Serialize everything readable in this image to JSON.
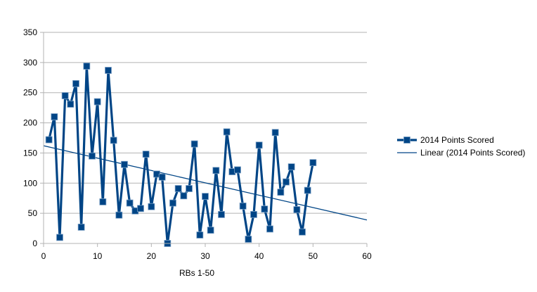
{
  "chart_data": {
    "type": "scatter",
    "title": "",
    "xlabel": "RBs 1-50",
    "ylabel": "",
    "xlim": [
      0,
      60
    ],
    "ylim": [
      0,
      350
    ],
    "xticks": [
      0,
      10,
      20,
      30,
      40,
      50,
      60
    ],
    "yticks": [
      0,
      50,
      100,
      150,
      200,
      250,
      300,
      350
    ],
    "grid": "horizontal",
    "legend_position": "right",
    "series": [
      {
        "name": "2014 Points Scored",
        "style": "line-with-square-markers",
        "color": "#004586",
        "x": [
          1,
          2,
          3,
          4,
          5,
          6,
          7,
          8,
          9,
          10,
          11,
          12,
          13,
          14,
          15,
          16,
          17,
          18,
          19,
          20,
          21,
          22,
          23,
          24,
          25,
          26,
          27,
          28,
          29,
          30,
          31,
          32,
          33,
          34,
          35,
          36,
          37,
          38,
          39,
          40,
          41,
          42,
          43,
          44,
          45,
          46,
          47,
          48,
          49,
          50
        ],
        "values": [
          172,
          210,
          10,
          245,
          231,
          265,
          27,
          294,
          145,
          235,
          69,
          287,
          171,
          47,
          131,
          67,
          54,
          58,
          148,
          61,
          115,
          110,
          0,
          67,
          91,
          79,
          91,
          165,
          14,
          78,
          22,
          121,
          48,
          185,
          119,
          122,
          62,
          7,
          48,
          163,
          57,
          24,
          184,
          85,
          102,
          127,
          56,
          19,
          88,
          134
        ]
      },
      {
        "name": "Linear (2014 Points Scored)",
        "style": "line",
        "color": "#004586",
        "x": [
          0,
          60
        ],
        "values": [
          162,
          39
        ]
      }
    ]
  }
}
